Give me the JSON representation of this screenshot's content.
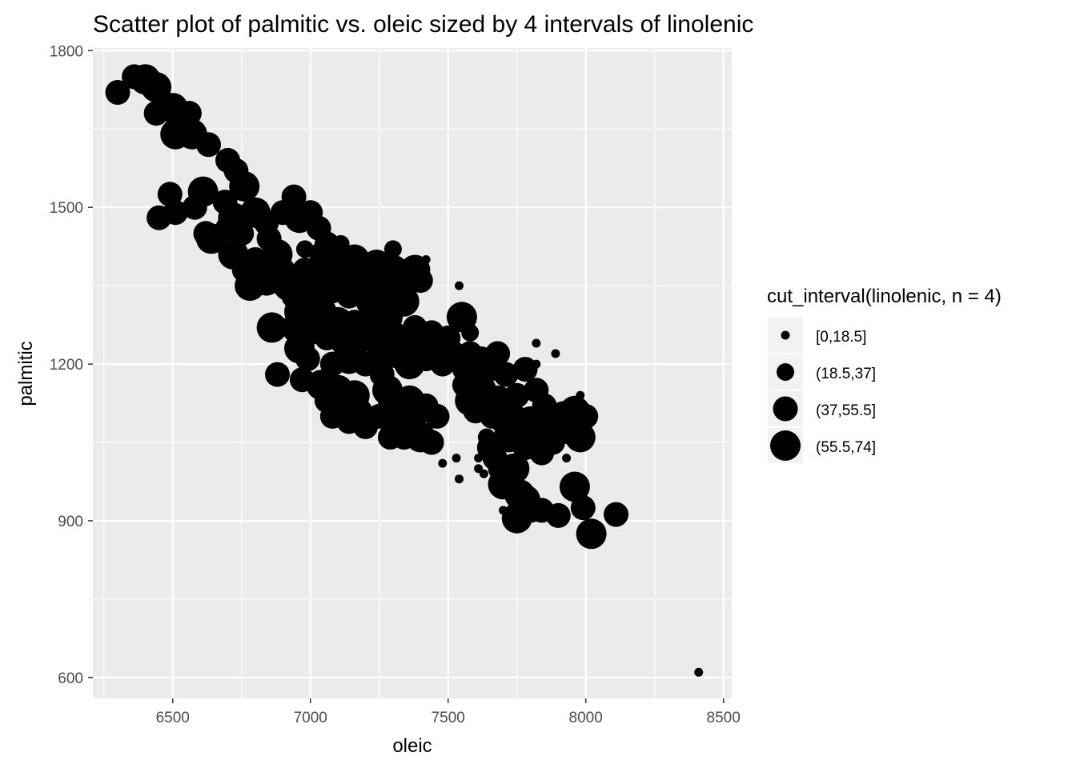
{
  "chart_data": {
    "type": "scatter",
    "title": "Scatter plot of palmitic vs. oleic sized by 4 intervals of linolenic",
    "xlabel": "oleic",
    "ylabel": "palmitic",
    "xlim": [
      6210,
      8530
    ],
    "ylim": [
      560,
      1805
    ],
    "x_ticks": [
      6500,
      7000,
      7500,
      8000,
      8500
    ],
    "x_minor_ticks": [
      6250,
      6750,
      7250,
      7750,
      8250
    ],
    "y_ticks": [
      600,
      900,
      1200,
      1500,
      1800
    ],
    "y_minor_ticks": [
      750,
      1050,
      1350,
      1650
    ],
    "x_tick_labels": [
      "6500",
      "7000",
      "7500",
      "8000",
      "8500"
    ],
    "y_tick_labels": [
      "600",
      "900",
      "1200",
      "1500",
      "1800"
    ],
    "grid": true,
    "panel_color": "#ebebeb",
    "point_color": "#000000",
    "legend": {
      "title": "cut_interval(linolenic, n = 4)",
      "placement": "right",
      "entries": [
        "[0,18.5]",
        "(18.5,37]",
        "(37,55.5]",
        "(55.5,74]"
      ]
    },
    "size_levels": [
      1,
      2,
      3,
      4
    ],
    "series": [
      {
        "points": [
          [
            6300,
            1720,
            3
          ],
          [
            6360,
            1750,
            3
          ],
          [
            6400,
            1745,
            4
          ],
          [
            6440,
            1730,
            4
          ],
          [
            6440,
            1680,
            3
          ],
          [
            6500,
            1690,
            4
          ],
          [
            6510,
            1640,
            4
          ],
          [
            6560,
            1680,
            3
          ],
          [
            6570,
            1640,
            4
          ],
          [
            6630,
            1620,
            3
          ],
          [
            6700,
            1590,
            3
          ],
          [
            6730,
            1570,
            3
          ],
          [
            6760,
            1540,
            4
          ],
          [
            6490,
            1525,
            3
          ],
          [
            6450,
            1480,
            3
          ],
          [
            6510,
            1490,
            3
          ],
          [
            6580,
            1500,
            3
          ],
          [
            6610,
            1530,
            4
          ],
          [
            6690,
            1510,
            3
          ],
          [
            6720,
            1480,
            4
          ],
          [
            6620,
            1450,
            3
          ],
          [
            6640,
            1440,
            4
          ],
          [
            6700,
            1460,
            3
          ],
          [
            6750,
            1450,
            3
          ],
          [
            6800,
            1490,
            4
          ],
          [
            6840,
            1470,
            3
          ],
          [
            6850,
            1440,
            3
          ],
          [
            6900,
            1490,
            3
          ],
          [
            6940,
            1520,
            3
          ],
          [
            6960,
            1480,
            4
          ],
          [
            7000,
            1490,
            3
          ],
          [
            7030,
            1460,
            3
          ],
          [
            7060,
            1430,
            3
          ],
          [
            6720,
            1410,
            4
          ],
          [
            6760,
            1380,
            3
          ],
          [
            6780,
            1350,
            4
          ],
          [
            6800,
            1400,
            3
          ],
          [
            6840,
            1360,
            4
          ],
          [
            6880,
            1410,
            4
          ],
          [
            6900,
            1380,
            3
          ],
          [
            6920,
            1350,
            4
          ],
          [
            6940,
            1330,
            3
          ],
          [
            6960,
            1300,
            4
          ],
          [
            6980,
            1380,
            3
          ],
          [
            7000,
            1350,
            4
          ],
          [
            7020,
            1320,
            4
          ],
          [
            7040,
            1410,
            3
          ],
          [
            7060,
            1370,
            4
          ],
          [
            7080,
            1340,
            3
          ],
          [
            7100,
            1390,
            4
          ],
          [
            7120,
            1360,
            4
          ],
          [
            7140,
            1330,
            3
          ],
          [
            7160,
            1400,
            4
          ],
          [
            7180,
            1380,
            3
          ],
          [
            7200,
            1350,
            4
          ],
          [
            7220,
            1320,
            4
          ],
          [
            7240,
            1390,
            4
          ],
          [
            7260,
            1360,
            3
          ],
          [
            7280,
            1330,
            4
          ],
          [
            7300,
            1380,
            4
          ],
          [
            7320,
            1350,
            3
          ],
          [
            7340,
            1320,
            4
          ],
          [
            7360,
            1370,
            3
          ],
          [
            7380,
            1380,
            4
          ],
          [
            7400,
            1360,
            3
          ],
          [
            7420,
            1400,
            1
          ],
          [
            6860,
            1270,
            4
          ],
          [
            6880,
            1180,
            3
          ],
          [
            6950,
            1270,
            4
          ],
          [
            6960,
            1230,
            4
          ],
          [
            6990,
            1210,
            3
          ],
          [
            6970,
            1170,
            3
          ],
          [
            7000,
            1260,
            3
          ],
          [
            7040,
            1300,
            4
          ],
          [
            7060,
            1250,
            3
          ],
          [
            7080,
            1200,
            3
          ],
          [
            7100,
            1280,
            4
          ],
          [
            7120,
            1240,
            3
          ],
          [
            7140,
            1210,
            4
          ],
          [
            7160,
            1280,
            3
          ],
          [
            7180,
            1250,
            4
          ],
          [
            7200,
            1200,
            3
          ],
          [
            7220,
            1280,
            4
          ],
          [
            7240,
            1250,
            3
          ],
          [
            7260,
            1230,
            4
          ],
          [
            7280,
            1290,
            4
          ],
          [
            7300,
            1260,
            3
          ],
          [
            7320,
            1220,
            4
          ],
          [
            7340,
            1250,
            3
          ],
          [
            7360,
            1200,
            4
          ],
          [
            7380,
            1270,
            3
          ],
          [
            7400,
            1240,
            4
          ],
          [
            7420,
            1210,
            3
          ],
          [
            7440,
            1260,
            3
          ],
          [
            7460,
            1230,
            4
          ],
          [
            7480,
            1200,
            3
          ],
          [
            7500,
            1250,
            3
          ],
          [
            7520,
            1220,
            3
          ],
          [
            7550,
            1290,
            4
          ],
          [
            7560,
            1190,
            3
          ],
          [
            7580,
            1220,
            3
          ],
          [
            7600,
            1180,
            4
          ],
          [
            7620,
            1210,
            3
          ],
          [
            7650,
            1190,
            3
          ],
          [
            7680,
            1220,
            3
          ],
          [
            7040,
            1160,
            4
          ],
          [
            7060,
            1130,
            3
          ],
          [
            7080,
            1100,
            3
          ],
          [
            7100,
            1150,
            4
          ],
          [
            7120,
            1120,
            3
          ],
          [
            7140,
            1090,
            3
          ],
          [
            7160,
            1140,
            4
          ],
          [
            7180,
            1110,
            3
          ],
          [
            7200,
            1080,
            3
          ],
          [
            7250,
            1100,
            3
          ],
          [
            7290,
            1060,
            3
          ],
          [
            7300,
            1120,
            4
          ],
          [
            7320,
            1090,
            3
          ],
          [
            7340,
            1060,
            3
          ],
          [
            7360,
            1130,
            4
          ],
          [
            7380,
            1100,
            3
          ],
          [
            7400,
            1060,
            4
          ],
          [
            7420,
            1120,
            3
          ],
          [
            7440,
            1050,
            3
          ],
          [
            7460,
            1100,
            3
          ],
          [
            7260,
            1180,
            3
          ],
          [
            7280,
            1150,
            4
          ],
          [
            7560,
            1160,
            3
          ],
          [
            7580,
            1130,
            4
          ],
          [
            7600,
            1110,
            3
          ],
          [
            7620,
            1150,
            4
          ],
          [
            7640,
            1120,
            3
          ],
          [
            7660,
            1100,
            3
          ],
          [
            7680,
            1130,
            4
          ],
          [
            7700,
            1090,
            3
          ],
          [
            7720,
            1060,
            4
          ],
          [
            7740,
            1100,
            3
          ],
          [
            7760,
            1070,
            4
          ],
          [
            7780,
            1040,
            3
          ],
          [
            7800,
            1090,
            4
          ],
          [
            7820,
            1060,
            3
          ],
          [
            7840,
            1030,
            3
          ],
          [
            7860,
            1080,
            3
          ],
          [
            7880,
            1050,
            3
          ],
          [
            7900,
            1080,
            3
          ],
          [
            7920,
            1100,
            4
          ],
          [
            7940,
            1070,
            3
          ],
          [
            7960,
            1110,
            4
          ],
          [
            7980,
            1060,
            4
          ],
          [
            8000,
            1100,
            3
          ],
          [
            7710,
            1180,
            3
          ],
          [
            7750,
            1140,
            3
          ],
          [
            7780,
            1190,
            3
          ],
          [
            7820,
            1150,
            3
          ],
          [
            7850,
            1120,
            3
          ],
          [
            7700,
            970,
            4
          ],
          [
            7740,
            1000,
            4
          ],
          [
            7760,
            950,
            4
          ],
          [
            7780,
            940,
            4
          ],
          [
            7800,
            920,
            3
          ],
          [
            7750,
            905,
            4
          ],
          [
            7840,
            920,
            3
          ],
          [
            7900,
            910,
            3
          ],
          [
            7960,
            965,
            4
          ],
          [
            7990,
            925,
            3
          ],
          [
            8020,
            875,
            4
          ],
          [
            8110,
            912,
            3
          ],
          [
            7650,
            1040,
            3
          ],
          [
            7670,
            1020,
            3
          ],
          [
            7690,
            1000,
            3
          ],
          [
            7480,
            1010,
            1
          ],
          [
            7530,
            1020,
            1
          ],
          [
            7540,
            980,
            1
          ],
          [
            7610,
            1000,
            1
          ],
          [
            7630,
            990,
            1
          ],
          [
            7610,
            1020,
            1
          ],
          [
            7540,
            1350,
            1
          ],
          [
            7820,
            1240,
            1
          ],
          [
            7890,
            1220,
            1
          ],
          [
            7820,
            1200,
            1
          ],
          [
            7980,
            1140,
            1
          ],
          [
            7700,
            920,
            1
          ],
          [
            7930,
            1020,
            1
          ],
          [
            8410,
            610,
            1
          ],
          [
            7640,
            1060,
            2
          ],
          [
            7860,
            1060,
            2
          ],
          [
            7580,
            1260,
            2
          ],
          [
            7300,
            1420,
            2
          ],
          [
            7110,
            1430,
            2
          ],
          [
            6980,
            1420,
            2
          ]
        ]
      }
    ]
  }
}
